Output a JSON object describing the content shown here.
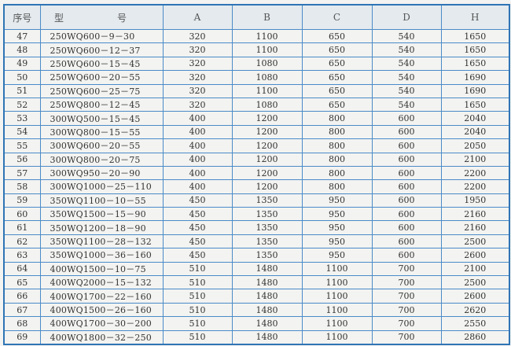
{
  "headers": [
    "序号",
    "型　号",
    "A",
    "B",
    "C",
    "D",
    "H"
  ],
  "rows": [
    [
      "47",
      "250WQ600－9－30",
      "320",
      "1100",
      "650",
      "540",
      "1650"
    ],
    [
      "48",
      "250WQ600－12－37",
      "320",
      "1100",
      "650",
      "540",
      "1650"
    ],
    [
      "49",
      "250WQ600－15－45",
      "320",
      "1080",
      "650",
      "540",
      "1650"
    ],
    [
      "50",
      "250WQ600－20－55",
      "320",
      "1080",
      "650",
      "540",
      "1690"
    ],
    [
      "51",
      "250WQ600－25－75",
      "320",
      "1100",
      "650",
      "540",
      "1690"
    ],
    [
      "52",
      "250WQ800－12－45",
      "320",
      "1080",
      "650",
      "540",
      "1650"
    ],
    [
      "53",
      "300WQ500－15－45",
      "400",
      "1200",
      "800",
      "600",
      "2040"
    ],
    [
      "54",
      "300WQ800－15－55",
      "400",
      "1200",
      "800",
      "600",
      "2040"
    ],
    [
      "55",
      "300WQ600－20－55",
      "400",
      "1200",
      "800",
      "600",
      "2050"
    ],
    [
      "56",
      "300WQ800－20－75",
      "400",
      "1200",
      "800",
      "600",
      "2100"
    ],
    [
      "57",
      "300WQ950－20－90",
      "400",
      "1200",
      "800",
      "600",
      "2200"
    ],
    [
      "58",
      "300WQ1000－25－110",
      "400",
      "1200",
      "800",
      "600",
      "2200"
    ],
    [
      "59",
      "350WQ1100－10－55",
      "450",
      "1350",
      "950",
      "600",
      "1950"
    ],
    [
      "60",
      "350WQ1500－15－90",
      "450",
      "1350",
      "950",
      "600",
      "2160"
    ],
    [
      "61",
      "350WQ1200－18－90",
      "450",
      "1350",
      "950",
      "600",
      "2160"
    ],
    [
      "62",
      "350WQ1100－28－132",
      "450",
      "1350",
      "950",
      "600",
      "2500"
    ],
    [
      "63",
      "350WQ1000－36－160",
      "450",
      "1350",
      "950",
      "600",
      "2600"
    ],
    [
      "64",
      "400WQ1500－10－75",
      "510",
      "1480",
      "1100",
      "700",
      "2100"
    ],
    [
      "65",
      "400WQ2000－15－132",
      "510",
      "1480",
      "1100",
      "700",
      "2500"
    ],
    [
      "66",
      "400WQ1700－22－160",
      "510",
      "1480",
      "1100",
      "700",
      "2600"
    ],
    [
      "67",
      "400WQ1500－26－160",
      "510",
      "1480",
      "1100",
      "700",
      "2620"
    ],
    [
      "68",
      "400WQ1700－30－200",
      "510",
      "1480",
      "1100",
      "700",
      "2550"
    ],
    [
      "69",
      "400WQ1800－32－250",
      "510",
      "1480",
      "1100",
      "700",
      "2860"
    ]
  ]
}
